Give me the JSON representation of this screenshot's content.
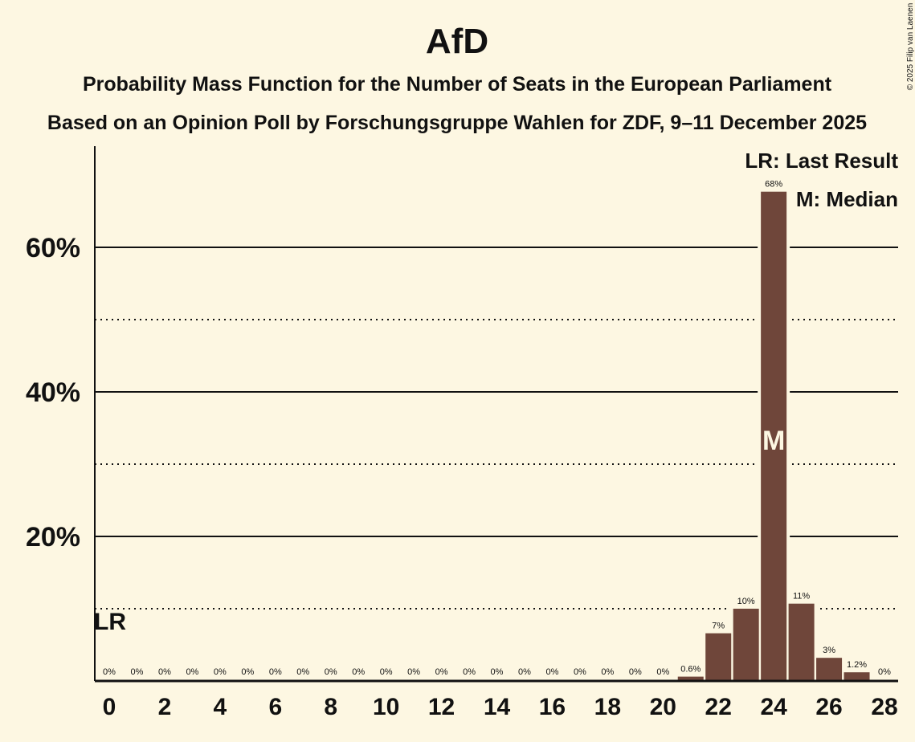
{
  "chart_data": {
    "type": "bar",
    "title": "AfD",
    "subtitle1": "Probability Mass Function for the Number of Seats in the European Parliament",
    "subtitle2": "Based on an Opinion Poll by Forschungsgruppe Wahlen for ZDF, 9–11 December 2025",
    "copyright": "© 2025 Filip van Laenen",
    "x": [
      0,
      1,
      2,
      3,
      4,
      5,
      6,
      7,
      8,
      9,
      10,
      11,
      12,
      13,
      14,
      15,
      16,
      17,
      18,
      19,
      20,
      21,
      22,
      23,
      24,
      25,
      26,
      27,
      28
    ],
    "values": [
      0,
      0,
      0,
      0,
      0,
      0,
      0,
      0,
      0,
      0,
      0,
      0,
      0,
      0,
      0,
      0,
      0,
      0,
      0,
      0,
      0,
      0.6,
      6.6,
      10,
      67.7,
      10.7,
      3.2,
      1.2,
      0
    ],
    "labels": [
      "0%",
      "0%",
      "0%",
      "0%",
      "0%",
      "0%",
      "0%",
      "0%",
      "0%",
      "0%",
      "0%",
      "0%",
      "0%",
      "0%",
      "0%",
      "0%",
      "0%",
      "0%",
      "0%",
      "0%",
      "0%",
      "0.6%",
      "7%",
      "10%",
      "68%",
      "11%",
      "3%",
      "1.2%",
      "0%"
    ],
    "xticks": [
      "0",
      "2",
      "4",
      "6",
      "8",
      "10",
      "12",
      "14",
      "16",
      "18",
      "20",
      "22",
      "24",
      "26",
      "28"
    ],
    "yticks": [
      {
        "v": 20,
        "label": "20%"
      },
      {
        "v": 40,
        "label": "40%"
      },
      {
        "v": 60,
        "label": "60%"
      }
    ],
    "minor_gridlines": [
      10,
      30,
      50
    ],
    "ylim": [
      0,
      73
    ],
    "last_result": {
      "x": 0,
      "label": "LR"
    },
    "median": {
      "x": 24,
      "label": "M"
    },
    "legend": [
      "LR: Last Result",
      "M: Median"
    ],
    "legend_position": "top-right",
    "bar_color": "#6f463a",
    "background": "#fdf7e2"
  }
}
